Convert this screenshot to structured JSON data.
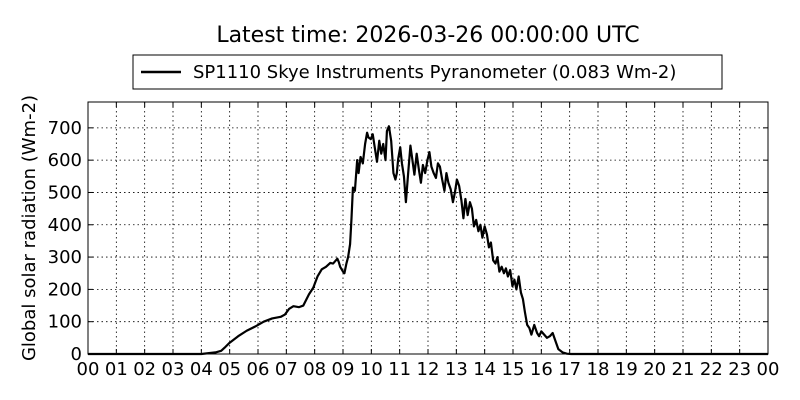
{
  "chart_data": {
    "type": "line",
    "title": "Latest time: 2026-03-26 00:00:00 UTC",
    "ylabel": "Global solar radiation (Wm-2)",
    "xlabel": "",
    "xlim": [
      0,
      24
    ],
    "ylim": [
      0,
      780
    ],
    "x_tick_labels": [
      "00",
      "01",
      "02",
      "03",
      "04",
      "05",
      "06",
      "07",
      "08",
      "09",
      "10",
      "11",
      "12",
      "13",
      "14",
      "15",
      "16",
      "17",
      "18",
      "19",
      "20",
      "21",
      "22",
      "23",
      "00"
    ],
    "y_tick_values": [
      0,
      100,
      200,
      300,
      400,
      500,
      600,
      700
    ],
    "grid": true,
    "legend_position": "top-center",
    "series": [
      {
        "name": "SP1110 Skye Instruments Pyranometer (0.083 Wm-2)",
        "color": "#000000",
        "x": [
          0,
          4.0,
          4.5,
          4.7,
          4.85,
          5.0,
          5.3,
          5.6,
          5.9,
          6.2,
          6.5,
          6.8,
          6.95,
          7.1,
          7.25,
          7.45,
          7.6,
          7.8,
          7.95,
          8.1,
          8.25,
          8.4,
          8.55,
          8.65,
          8.75,
          8.8,
          8.85,
          8.9,
          9.0,
          9.05,
          9.12,
          9.18,
          9.25,
          9.3,
          9.35,
          9.42,
          9.5,
          9.55,
          9.62,
          9.7,
          9.78,
          9.85,
          9.9,
          9.98,
          10.05,
          10.12,
          10.2,
          10.28,
          10.35,
          10.42,
          10.5,
          10.55,
          10.62,
          10.7,
          10.78,
          10.85,
          10.9,
          10.95,
          11.02,
          11.08,
          11.15,
          11.22,
          11.3,
          11.38,
          11.45,
          11.52,
          11.6,
          11.68,
          11.75,
          11.82,
          11.9,
          11.98,
          12.05,
          12.12,
          12.2,
          12.28,
          12.35,
          12.42,
          12.5,
          12.58,
          12.65,
          12.72,
          12.8,
          12.88,
          12.95,
          13.02,
          13.1,
          13.18,
          13.25,
          13.32,
          13.4,
          13.48,
          13.55,
          13.62,
          13.7,
          13.78,
          13.85,
          13.92,
          14.0,
          14.08,
          14.15,
          14.22,
          14.3,
          14.38,
          14.45,
          14.52,
          14.6,
          14.68,
          14.75,
          14.82,
          14.9,
          14.98,
          15.05,
          15.12,
          15.2,
          15.28,
          15.35,
          15.42,
          15.5,
          15.58,
          15.65,
          15.75,
          15.85,
          15.92,
          16.0,
          16.1,
          16.2,
          16.3,
          16.4,
          16.5,
          16.6,
          16.75,
          16.9,
          17.05,
          17.3,
          24.0
        ],
        "y": [
          0,
          0,
          5,
          10,
          22,
          35,
          55,
          72,
          85,
          100,
          110,
          115,
          122,
          140,
          148,
          145,
          150,
          185,
          205,
          240,
          262,
          270,
          282,
          280,
          290,
          295,
          285,
          270,
          255,
          250,
          280,
          300,
          340,
          420,
          515,
          505,
          600,
          560,
          610,
          590,
          650,
          685,
          670,
          665,
          680,
          640,
          595,
          660,
          620,
          650,
          600,
          690,
          705,
          660,
          560,
          540,
          560,
          605,
          640,
          590,
          550,
          470,
          560,
          645,
          600,
          555,
          620,
          570,
          530,
          585,
          560,
          600,
          625,
          580,
          560,
          545,
          590,
          580,
          540,
          505,
          560,
          530,
          510,
          470,
          500,
          540,
          520,
          475,
          420,
          480,
          430,
          470,
          450,
          395,
          415,
          380,
          400,
          360,
          395,
          370,
          330,
          345,
          290,
          280,
          300,
          255,
          270,
          250,
          265,
          240,
          260,
          210,
          230,
          200,
          240,
          190,
          170,
          130,
          90,
          80,
          60,
          90,
          65,
          55,
          70,
          60,
          50,
          55,
          65,
          40,
          15,
          5,
          1,
          0,
          0,
          0
        ]
      }
    ]
  }
}
